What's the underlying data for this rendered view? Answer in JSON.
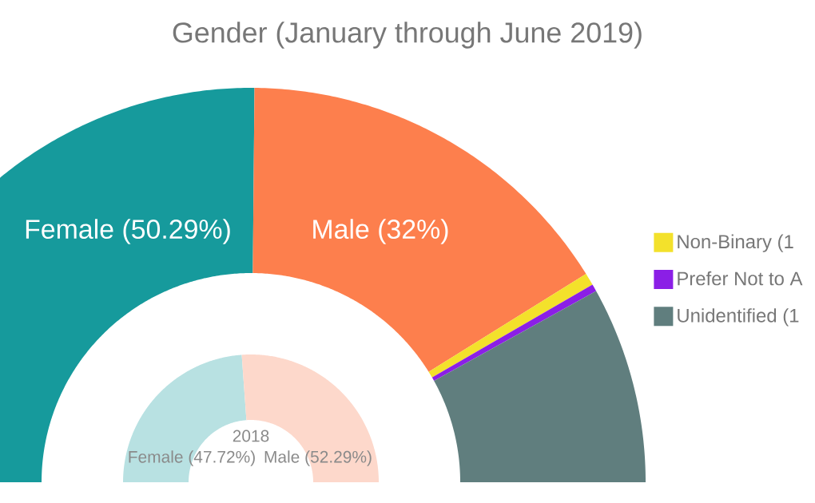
{
  "chart_data": [
    {
      "type": "donut",
      "title": "Gender (January through June 2019)",
      "categories": [
        null,
        null,
        "Non-Binary (1",
        "Prefer Not to A",
        "Unidentified (1"
      ],
      "values": [
        50.29,
        32,
        1.0,
        0.6,
        16.11
      ],
      "value_labels": [
        "Female (50.29%)",
        "Male (32%)",
        null,
        null,
        null
      ],
      "colors": [
        "#169a9c",
        "#fd7f4d",
        "#f3e12b",
        "#8b1fe6",
        "#607e7e"
      ],
      "legend": "right"
    },
    {
      "type": "donut",
      "title": "2018",
      "categories": [
        null,
        null
      ],
      "values": [
        47.72,
        52.29
      ],
      "value_labels": [
        "Female (47.72%)",
        "Male (52.29%)"
      ],
      "colors": [
        "#b8e1e2",
        "#fdd8cb"
      ]
    }
  ]
}
